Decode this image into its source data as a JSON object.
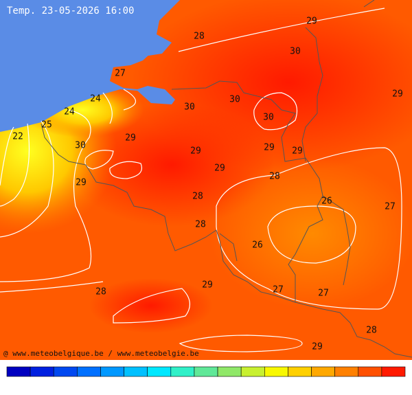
{
  "header": {
    "title": "Temp. 23-05-2026 16:00"
  },
  "contour_labels": [
    29,
    28,
    30,
    27,
    29,
    24,
    30,
    24,
    30,
    30,
    25,
    22,
    29,
    30,
    29,
    29,
    29,
    29,
    28,
    29,
    28,
    26,
    27,
    28,
    26,
    29,
    27,
    28,
    27,
    28,
    29
  ],
  "footer": {
    "credit": "@ www.meteobelgique.be / www.meteobelgie.be"
  }
}
